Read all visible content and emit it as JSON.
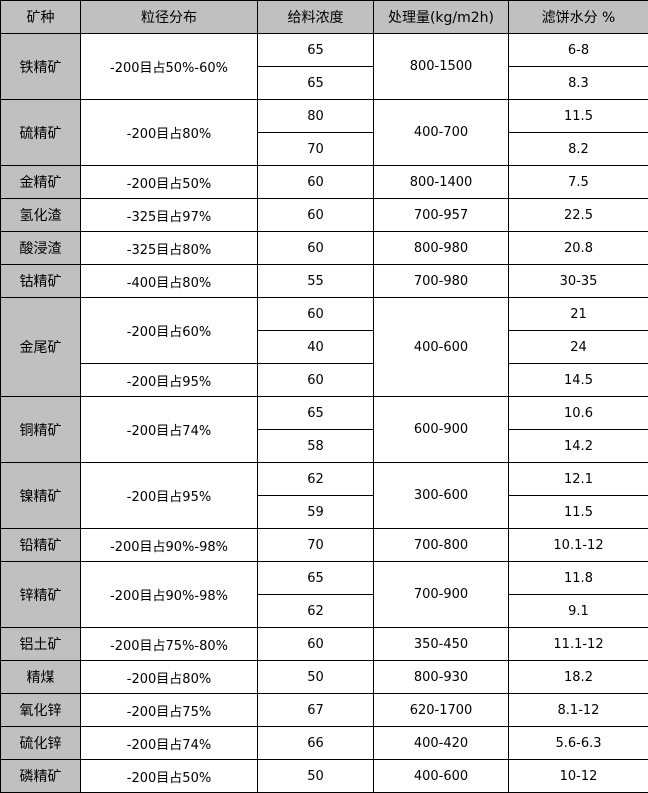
{
  "headers": [
    "矿种",
    "粒径分布",
    "给料浓度",
    "处理量(kg/m2h)",
    "滤饼水分 %"
  ],
  "groups": [
    {
      "name": "铁精矿",
      "size": [
        [
          "-200目占50%-60%",
          2
        ]
      ],
      "conc": [
        "65",
        "65"
      ],
      "rate": [
        [
          "800-1500",
          2
        ]
      ],
      "water": [
        "6-8",
        "8.3"
      ]
    },
    {
      "name": "硫精矿",
      "size": [
        [
          "-200目占80%",
          2
        ]
      ],
      "conc": [
        "80",
        "70"
      ],
      "rate": [
        [
          "400-700",
          2
        ]
      ],
      "water": [
        "11.5",
        "8.2"
      ]
    },
    {
      "name": "金精矿",
      "size": [
        [
          "-200目占50%",
          1
        ]
      ],
      "conc": [
        "60"
      ],
      "rate": [
        [
          "800-1400",
          1
        ]
      ],
      "water": [
        "7.5"
      ]
    },
    {
      "name": "氢化渣",
      "size": [
        [
          "-325目占97%",
          1
        ]
      ],
      "conc": [
        "60"
      ],
      "rate": [
        [
          "700-957",
          1
        ]
      ],
      "water": [
        "22.5"
      ]
    },
    {
      "name": "酸浸渣",
      "size": [
        [
          "-325目占80%",
          1
        ]
      ],
      "conc": [
        "60"
      ],
      "rate": [
        [
          "800-980",
          1
        ]
      ],
      "water": [
        "20.8"
      ]
    },
    {
      "name": "钴精矿",
      "size": [
        [
          "-400目占80%",
          1
        ]
      ],
      "conc": [
        "55"
      ],
      "rate": [
        [
          "700-980",
          1
        ]
      ],
      "water": [
        "30-35"
      ]
    },
    {
      "name": "金尾矿",
      "size": [
        [
          "-200目占60%",
          2
        ],
        [
          "-200目占95%",
          1
        ]
      ],
      "conc": [
        "60",
        "40",
        "60"
      ],
      "rate": [
        [
          "400-600",
          3
        ]
      ],
      "water": [
        "21",
        "24",
        "14.5"
      ]
    },
    {
      "name": "铜精矿",
      "size": [
        [
          "-200目占74%",
          2
        ]
      ],
      "conc": [
        "65",
        "58"
      ],
      "rate": [
        [
          "600-900",
          2
        ]
      ],
      "water": [
        "10.6",
        "14.2"
      ]
    },
    {
      "name": "镍精矿",
      "size": [
        [
          "-200目占95%",
          2
        ]
      ],
      "conc": [
        "62",
        "59"
      ],
      "rate": [
        [
          "300-600",
          2
        ]
      ],
      "water": [
        "12.1",
        "11.5"
      ]
    },
    {
      "name": "铅精矿",
      "size": [
        [
          "-200目占90%-98%",
          1
        ]
      ],
      "conc": [
        "70"
      ],
      "rate": [
        [
          "700-800",
          1
        ]
      ],
      "water": [
        "10.1-12"
      ]
    },
    {
      "name": "锌精矿",
      "size": [
        [
          "-200目占90%-98%",
          2
        ]
      ],
      "conc": [
        "65",
        "62"
      ],
      "rate": [
        [
          "700-900",
          2
        ]
      ],
      "water": [
        "11.8",
        "9.1"
      ]
    },
    {
      "name": "铝土矿",
      "size": [
        [
          "-200目占75%-80%",
          1
        ]
      ],
      "conc": [
        "60"
      ],
      "rate": [
        [
          "350-450",
          1
        ]
      ],
      "water": [
        "11.1-12"
      ]
    },
    {
      "name": "精煤",
      "size": [
        [
          "-200目占80%",
          1
        ]
      ],
      "conc": [
        "50"
      ],
      "rate": [
        [
          "800-930",
          1
        ]
      ],
      "water": [
        "18.2"
      ]
    },
    {
      "name": "氧化锌",
      "size": [
        [
          "-200目占75%",
          1
        ]
      ],
      "conc": [
        "67"
      ],
      "rate": [
        [
          "620-1700",
          1
        ]
      ],
      "water": [
        "8.1-12"
      ]
    },
    {
      "name": "硫化锌",
      "size": [
        [
          "-200目占74%",
          1
        ]
      ],
      "conc": [
        "66"
      ],
      "rate": [
        [
          "400-420",
          1
        ]
      ],
      "water": [
        "5.6-6.3"
      ]
    },
    {
      "name": "磷精矿",
      "size": [
        [
          "-200目占50%",
          1
        ]
      ],
      "conc": [
        "50"
      ],
      "rate": [
        [
          "400-600",
          1
        ]
      ],
      "water": [
        "10-12"
      ]
    }
  ]
}
